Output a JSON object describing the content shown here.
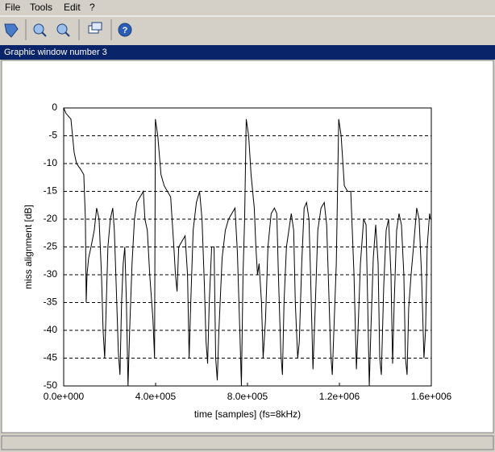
{
  "menu": [
    "File",
    "Tools",
    "Edit",
    "?"
  ],
  "window_title": "Graphic window number 3",
  "chart_data": {
    "type": "line",
    "xlabel": "time [samples] (fs=8kHz)",
    "ylabel": "miss alignment [dB]",
    "color": "#000000",
    "grid": true,
    "xlim": [
      0,
      1600000
    ],
    "ylim": [
      -50,
      0
    ],
    "xticks": [
      {
        "value": 0,
        "label": "0.0e+000"
      },
      {
        "value": 400000,
        "label": "4.0e+005"
      },
      {
        "value": 800000,
        "label": "8.0e+005"
      },
      {
        "value": 1200000,
        "label": "1.2e+006"
      },
      {
        "value": 1600000,
        "label": "1.6e+006"
      }
    ],
    "yticks": [
      0,
      -5,
      -10,
      -15,
      -20,
      -25,
      -30,
      -35,
      -40,
      -45,
      -50
    ],
    "x": [
      0,
      10500,
      31500,
      45500,
      56000,
      73500,
      87500,
      94500,
      98000,
      101500,
      108500,
      119000,
      133000,
      143500,
      154000,
      164500,
      171500,
      178500,
      185500,
      192500,
      203000,
      213500,
      220500,
      231000,
      238000,
      245000,
      252000,
      259000,
      266000,
      273000,
      280000,
      287000,
      297500,
      308000,
      318500,
      332500,
      346500,
      353500,
      364000,
      374500,
      388500,
      395500,
      399000,
      409500,
      423500,
      437500,
      451500,
      465500,
      479500,
      486500,
      493500,
      500500,
      514500,
      528500,
      539000,
      546000,
      553000,
      563500,
      577500,
      591500,
      602000,
      612500,
      619500,
      626500,
      633500,
      644000,
      654500,
      661500,
      668500,
      675500,
      689500,
      703500,
      717500,
      731500,
      745500,
      756000,
      766500,
      773500,
      780500,
      787500,
      794500,
      805000,
      815500,
      829500,
      836500,
      843500,
      850500,
      861000,
      868000,
      878500,
      889000,
      903000,
      917000,
      927500,
      934500,
      945000,
      952000,
      959000,
      969500,
      980000,
      990500,
      1001000,
      1008000,
      1018500,
      1025500,
      1036000,
      1046500,
      1057000,
      1067500,
      1074500,
      1085000,
      1095500,
      1106000,
      1120000,
      1134000,
      1144500,
      1151500,
      1162000,
      1169000,
      1176000,
      1186500,
      1197000,
      1207500,
      1221500,
      1235500,
      1249500,
      1263500,
      1274000,
      1281000,
      1291500,
      1305500,
      1316000,
      1323000,
      1330000,
      1337000,
      1347500,
      1358000,
      1368500,
      1375500,
      1382500,
      1393000,
      1403500,
      1414000,
      1424500,
      1431500,
      1438500,
      1449000,
      1459500,
      1470000,
      1480500,
      1487500,
      1494500,
      1501500,
      1512000,
      1522500,
      1536500,
      1547000,
      1557500,
      1568000,
      1575000,
      1582000,
      1592500,
      1596000
    ],
    "values": [
      0,
      -1,
      -2,
      -8,
      -10,
      -11,
      -12,
      -20,
      -35,
      -30,
      -27,
      -25,
      -22,
      -18,
      -20,
      -30,
      -40,
      -45,
      -35,
      -25,
      -20,
      -18,
      -22,
      -35,
      -44,
      -48,
      -35,
      -28,
      -25,
      -35,
      -50,
      -40,
      -28,
      -20,
      -17,
      -16,
      -15,
      -20,
      -22,
      -30,
      -38,
      -45,
      -2,
      -5,
      -12,
      -14,
      -15,
      -16,
      -25,
      -30,
      -33,
      -25,
      -24,
      -23,
      -30,
      -45,
      -35,
      -22,
      -17,
      -15,
      -20,
      -32,
      -42,
      -46,
      -35,
      -25,
      -25,
      -45,
      -49,
      -40,
      -27,
      -22,
      -20,
      -19,
      -18,
      -26,
      -40,
      -50,
      -30,
      -20,
      -2,
      -5,
      -12,
      -18,
      -25,
      -30,
      -28,
      -35,
      -45,
      -38,
      -25,
      -19,
      -18,
      -19,
      -30,
      -44,
      -48,
      -35,
      -25,
      -22,
      -19,
      -22,
      -35,
      -45,
      -42,
      -28,
      -18,
      -17,
      -20,
      -30,
      -47,
      -35,
      -22,
      -18,
      -17,
      -21,
      -30,
      -44,
      -48,
      -40,
      -28,
      -2,
      -5,
      -14,
      -15,
      -15,
      -30,
      -47,
      -40,
      -28,
      -20,
      -21,
      -35,
      -50,
      -40,
      -27,
      -21,
      -28,
      -45,
      -48,
      -32,
      -22,
      -20,
      -30,
      -46,
      -35,
      -22,
      -19,
      -21,
      -30,
      -45,
      -48,
      -36,
      -30,
      -25,
      -18,
      -20,
      -30,
      -45,
      -40,
      -25,
      -19,
      -20
    ]
  }
}
